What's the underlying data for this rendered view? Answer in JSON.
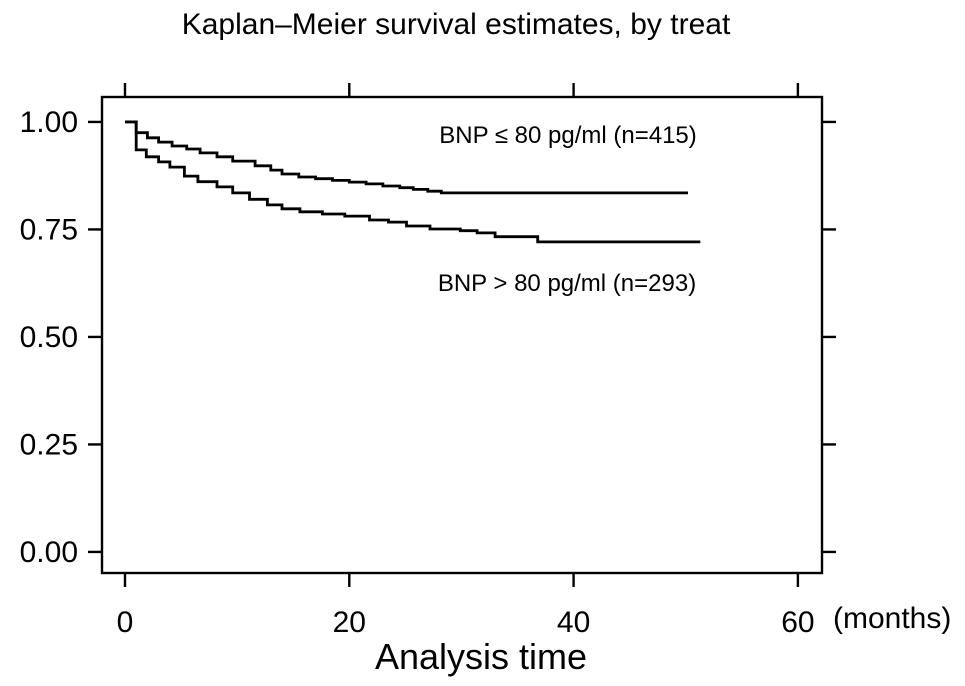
{
  "figure": {
    "background_color": "#ffffff",
    "line_color": "#000000",
    "text_color": "#000000"
  },
  "chart_data": {
    "type": "line",
    "variant": "kaplan_meier_step",
    "title": "Kaplan–Meier survival estimates, by treat",
    "xlabel": "Analysis time",
    "x_unit_label": "(months)",
    "ylabel": "",
    "grid": false,
    "legend_position": "inline-annotations",
    "xlim": [
      -2.05,
      62.15
    ],
    "ylim": [
      -0.049,
      1.058
    ],
    "xticks": [
      0,
      20,
      40,
      60
    ],
    "xtick_labels": [
      "0",
      "20",
      "40",
      "60"
    ],
    "yticks": [
      0,
      0.25,
      0.5,
      0.75,
      1.0
    ],
    "ytick_labels": [
      "0.00",
      "0.25",
      "0.50",
      "0.75",
      "1.00"
    ],
    "series": [
      {
        "name": "BNP ≤ 80 pg/ml (n=415)",
        "group": "BNP ≤ 80 pg/ml",
        "n": 415,
        "color": "#000000",
        "end_time": 50.2,
        "points": [
          [
            0,
            1.0
          ],
          [
            1,
            0.975
          ],
          [
            2,
            0.963
          ],
          [
            3,
            0.953
          ],
          [
            4.2,
            0.944
          ],
          [
            5.5,
            0.937
          ],
          [
            6.7,
            0.928
          ],
          [
            8.2,
            0.919
          ],
          [
            9.6,
            0.909
          ],
          [
            11.6,
            0.898
          ],
          [
            13.0,
            0.888
          ],
          [
            14.0,
            0.879
          ],
          [
            15.5,
            0.872
          ],
          [
            17.0,
            0.868
          ],
          [
            18.5,
            0.864
          ],
          [
            20.0,
            0.86
          ],
          [
            21.5,
            0.856
          ],
          [
            23.0,
            0.851
          ],
          [
            24.5,
            0.847
          ],
          [
            25.7,
            0.843
          ],
          [
            27.0,
            0.839
          ],
          [
            28.2,
            0.835
          ]
        ]
      },
      {
        "name": "BNP > 80 pg/ml (n=293)",
        "group": "BNP > 80 pg/ml",
        "n": 293,
        "color": "#000000",
        "end_time": 51.3,
        "points": [
          [
            0,
            1.0
          ],
          [
            1,
            0.935
          ],
          [
            1.9,
            0.919
          ],
          [
            3.0,
            0.907
          ],
          [
            4.0,
            0.895
          ],
          [
            5.3,
            0.874
          ],
          [
            6.5,
            0.861
          ],
          [
            8.2,
            0.849
          ],
          [
            9.6,
            0.835
          ],
          [
            11.1,
            0.82
          ],
          [
            12.7,
            0.807
          ],
          [
            14.0,
            0.798
          ],
          [
            15.6,
            0.791
          ],
          [
            17.6,
            0.786
          ],
          [
            19.6,
            0.781
          ],
          [
            21.8,
            0.772
          ],
          [
            23.5,
            0.767
          ],
          [
            25.1,
            0.758
          ],
          [
            27.2,
            0.751
          ],
          [
            29.9,
            0.747
          ],
          [
            31.4,
            0.742
          ],
          [
            33.0,
            0.733
          ],
          [
            36.8,
            0.721
          ]
        ]
      }
    ]
  }
}
